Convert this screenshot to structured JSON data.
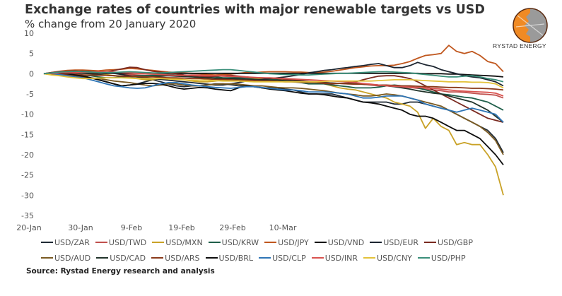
{
  "header": {
    "title": "Exchange rates of countries with major renewable targets vs USD",
    "subtitle": "% change from 20 January 2020"
  },
  "logo": {
    "text": "RYSTAD ENERGY",
    "icon": "globe-logo-icon",
    "colors": [
      "#f08a24",
      "#8c8c8c",
      "#5a2a10"
    ]
  },
  "source": "Source: Rystad Energy research and analysis",
  "chart_data": {
    "type": "line",
    "title": "Exchange rates of countries with major renewable targets vs USD",
    "subtitle": "% change from 20 January 2020",
    "xlabel": "",
    "ylabel": "",
    "ylim": [
      -35,
      10
    ],
    "yticks": [
      10,
      5,
      0,
      -5,
      -10,
      -15,
      -20,
      -25,
      -30,
      -35
    ],
    "xtick_labels": [
      "20-Jan",
      "30-Jan",
      "9-Feb",
      "19-Feb",
      "29-Feb",
      "10-Mar"
    ],
    "x_note": "daily observations from 20-Jan-2020 to ~19-Mar-2020 (60 points, index = day offset from 20-Jan)",
    "grid": false,
    "legend_position": "bottom",
    "series": [
      {
        "name": "USD/ZAR",
        "color": "#1f2a35",
        "values": [
          0,
          0.2,
          0.3,
          0.1,
          0,
          -0.5,
          -1,
          -1.5,
          -2,
          -2.5,
          -3,
          -2.8,
          -2.5,
          -2,
          -1.5,
          -2,
          -2.5,
          -3,
          -3.2,
          -3,
          -3,
          -2.8,
          -2.5,
          -2.5,
          -2.7,
          -3,
          -3,
          -3.2,
          -3.5,
          -3.5,
          -3.5,
          -3.8,
          -4,
          -4.5,
          -5,
          -5,
          -5,
          -5,
          -5.5,
          -6,
          -6.5,
          -7,
          -7,
          -7,
          -7,
          -7.5,
          -7.5,
          -7,
          -7,
          -7.5,
          -8,
          -8.5,
          -9,
          -10,
          -11,
          -12,
          -13,
          -14,
          -16,
          -19.5
        ]
      },
      {
        "name": "USD/TWD",
        "color": "#c0504d",
        "values": [
          0,
          0.2,
          0.3,
          0.4,
          0.4,
          0.3,
          0.2,
          0.2,
          0.2,
          0.1,
          0,
          -0.2,
          -0.3,
          -0.4,
          -0.4,
          -0.4,
          -0.4,
          -0.4,
          -0.4,
          -0.3,
          -0.3,
          -0.4,
          -0.5,
          -0.6,
          -0.7,
          -0.8,
          -0.9,
          -1,
          -1.1,
          -1.3,
          -1.4,
          -1.5,
          -1.5,
          -1.7,
          -1.9,
          -2,
          -2.2,
          -2.3,
          -2.4,
          -2.5,
          -2.5,
          -2.6,
          -2.8,
          -3,
          -3,
          -3.1,
          -3.2,
          -3.4,
          -3.6,
          -3.8,
          -4,
          -4.2,
          -4.5,
          -4.5,
          -4.6,
          -4.8,
          -5,
          -5.1,
          -5.3,
          -6
        ]
      },
      {
        "name": "USD/MXN",
        "color": "#c9a227",
        "values": [
          0,
          -0.2,
          -0.4,
          -0.5,
          -0.5,
          -0.5,
          -0.4,
          -0.3,
          -0.2,
          -0.5,
          -0.8,
          -1,
          -1.2,
          -1.5,
          -1.5,
          -1.2,
          -1,
          -1.2,
          -1.5,
          -1.8,
          -2,
          -2,
          -1.8,
          -1.6,
          -1.5,
          -1.5,
          -1.3,
          -1.2,
          -1.2,
          -1.3,
          -1.5,
          -1.7,
          -1.8,
          -2,
          -2,
          -2.2,
          -2.5,
          -3,
          -3.5,
          -3.8,
          -4,
          -4.5,
          -5,
          -5.5,
          -6,
          -7,
          -7.5,
          -8,
          -9.5,
          -13.5,
          -11,
          -13,
          -14,
          -17.5,
          -17,
          -17.5,
          -17.5,
          -20,
          -23,
          -30
        ]
      },
      {
        "name": "USD/KRW",
        "color": "#1f5f4a",
        "values": [
          0,
          0.1,
          0.2,
          0.1,
          0,
          -0.3,
          -0.5,
          -0.8,
          -1,
          -1,
          -0.8,
          -0.6,
          -0.5,
          -0.5,
          -0.4,
          -0.3,
          -0.2,
          -0.3,
          -0.4,
          -0.5,
          -0.6,
          -0.7,
          -0.8,
          -1,
          -1,
          -1,
          -1.2,
          -1.4,
          -1.5,
          -1.5,
          -1.5,
          -1.8,
          -2,
          -2.2,
          -2.5,
          -2.5,
          -2.5,
          -2.8,
          -3,
          -3.2,
          -3.5,
          -3.5,
          -3.5,
          -3.3,
          -3,
          -2.8,
          -3,
          -3.2,
          -3.5,
          -4,
          -4.5,
          -5,
          -5.2,
          -5.5,
          -5.8,
          -6,
          -6.5,
          -7,
          -8,
          -9
        ]
      },
      {
        "name": "USD/JPY",
        "color": "#c0571e",
        "values": [
          0,
          0.3,
          0.6,
          0.8,
          0.9,
          0.9,
          0.8,
          0.7,
          0.9,
          1,
          1.1,
          1.3,
          1.2,
          1.0,
          0.8,
          0.6,
          0.4,
          0.3,
          0.2,
          0.1,
          0,
          -0.2,
          -0.3,
          -0.2,
          -0.1,
          0.1,
          0.3,
          0.3,
          0.4,
          0.5,
          0.5,
          0.5,
          0.4,
          0.4,
          0.3,
          0.3,
          0.4,
          0.6,
          0.9,
          1.2,
          1.5,
          1.7,
          1.9,
          2,
          2,
          2.1,
          2.5,
          3,
          3.8,
          4.5,
          4.7,
          5,
          7,
          5.5,
          5,
          5.5,
          4.5,
          3,
          2.5,
          0.5
        ]
      },
      {
        "name": "USD/VND",
        "color": "#111111",
        "values": [
          0,
          0,
          0.1,
          0.1,
          0.1,
          0.1,
          0.1,
          0.1,
          0.1,
          0.1,
          0.1,
          0.1,
          0.1,
          0.1,
          0.1,
          0.1,
          0.1,
          0.1,
          0.1,
          0.1,
          0.1,
          0.1,
          0.1,
          0.1,
          0.1,
          0.1,
          0.1,
          0.1,
          0.1,
          0.1,
          0.1,
          0.1,
          0.1,
          0.1,
          0.1,
          0.1,
          0.1,
          0.1,
          0.1,
          0.1,
          0.1,
          0.1,
          0.1,
          0.1,
          0.1,
          0.1,
          0.1,
          0.1,
          0.1,
          0,
          0,
          0,
          -0.1,
          -0.1,
          -0.2,
          -0.3,
          -0.4,
          -0.5,
          -0.6,
          -0.8
        ]
      },
      {
        "name": "USD/EUR",
        "color": "#1c2530",
        "values": [
          0,
          0.2,
          0.4,
          0.5,
          0.6,
          0.6,
          0.5,
          0.4,
          0.3,
          0.1,
          -0.2,
          -0.5,
          -0.8,
          -1,
          -1.2,
          -1.4,
          -1.6,
          -1.8,
          -2,
          -2.2,
          -2.4,
          -2.6,
          -2.8,
          -2.8,
          -2.5,
          -2.2,
          -1.8,
          -1.6,
          -1.4,
          -1.2,
          -1,
          -0.8,
          -0.5,
          -0.2,
          0.2,
          0.5,
          0.8,
          1,
          1.3,
          1.5,
          1.8,
          2,
          2.3,
          2.5,
          2,
          1.5,
          1.5,
          2,
          2.8,
          2.2,
          1.8,
          1,
          0.5,
          0,
          -0.5,
          -0.8,
          -1,
          -1.5,
          -2,
          -3
        ]
      },
      {
        "name": "USD/GBP",
        "color": "#7a2a20",
        "values": [
          0,
          0.3,
          0.5,
          0.6,
          0.7,
          0.5,
          0.3,
          0.2,
          0.4,
          0.8,
          1.2,
          1.6,
          1.5,
          1,
          0.6,
          0.4,
          0.2,
          0,
          -0.3,
          -0.5,
          -0.6,
          -0.8,
          -0.6,
          -0.5,
          -0.4,
          -0.6,
          -0.8,
          -1,
          -1,
          -1.1,
          -1.2,
          -1.3,
          -1.5,
          -1.7,
          -2,
          -2.2,
          -2.4,
          -2.5,
          -2.4,
          -2.3,
          -2,
          -1.5,
          -1,
          -0.6,
          -0.5,
          -0.5,
          -0.8,
          -1.2,
          -2,
          -3,
          -4,
          -5,
          -6,
          -7,
          -8,
          -9,
          -10,
          -11,
          -11.5,
          -12
        ]
      },
      {
        "name": "USD/AUD",
        "color": "#7a5a22",
        "values": [
          0,
          -0.2,
          -0.3,
          -0.4,
          -0.5,
          -0.8,
          -1,
          -1.2,
          -1.5,
          -1.8,
          -2,
          -2.2,
          -2.5,
          -2.8,
          -3,
          -2.8,
          -2.5,
          -2.5,
          -2.8,
          -3,
          -3,
          -2.8,
          -2.6,
          -2.5,
          -2.5,
          -2.6,
          -2.8,
          -3,
          -3,
          -3.2,
          -3.4,
          -3.5,
          -3.5,
          -3.6,
          -3.8,
          -4,
          -4.2,
          -4.5,
          -4.8,
          -5,
          -5.2,
          -5.5,
          -5.5,
          -5.3,
          -5,
          -5.2,
          -5.5,
          -6,
          -6.5,
          -7,
          -7.5,
          -8,
          -9,
          -10,
          -11,
          -12,
          -13,
          -14.5,
          -16.5,
          -20
        ]
      },
      {
        "name": "USD/CAD",
        "color": "#21332a",
        "values": [
          0,
          0.1,
          0.1,
          0.2,
          0.2,
          0.1,
          0,
          -0.2,
          -0.4,
          -0.5,
          -0.6,
          -0.7,
          -0.8,
          -0.8,
          -0.7,
          -0.6,
          -0.5,
          -0.6,
          -0.7,
          -0.8,
          -0.9,
          -1,
          -1.1,
          -1.2,
          -1.2,
          -1.3,
          -1.4,
          -1.5,
          -1.6,
          -1.6,
          -1.6,
          -1.7,
          -1.8,
          -1.9,
          -2,
          -2.1,
          -2.2,
          -2.3,
          -2.4,
          -2.4,
          -2.5,
          -2.6,
          -2.7,
          -2.8,
          -3,
          -3.2,
          -3.5,
          -3.8,
          -4.2,
          -4.5,
          -4.8,
          -5,
          -5.5,
          -6,
          -6.5,
          -7,
          -8,
          -9,
          -10.5,
          -12
        ]
      },
      {
        "name": "USD/ARS",
        "color": "#8a3a1a",
        "values": [
          0,
          -0.1,
          -0.1,
          -0.2,
          -0.2,
          -0.3,
          -0.3,
          -0.4,
          -0.4,
          -0.5,
          -0.6,
          -0.6,
          -0.7,
          -0.8,
          -0.8,
          -0.9,
          -1,
          -1,
          -1.1,
          -1.2,
          -1.2,
          -1.3,
          -1.4,
          -1.4,
          -1.5,
          -1.6,
          -1.6,
          -1.7,
          -1.8,
          -1.8,
          -1.9,
          -2,
          -2,
          -2.1,
          -2.2,
          -2.2,
          -2.3,
          -2.4,
          -2.4,
          -2.5,
          -2.6,
          -2.6,
          -2.7,
          -2.8,
          -2.8,
          -2.9,
          -3,
          -3,
          -3.1,
          -3.2,
          -3.2,
          -3.3,
          -3.4,
          -3.4,
          -3.5,
          -3.6,
          -3.6,
          -3.7,
          -3.8,
          -4
        ]
      },
      {
        "name": "USD/BRL",
        "color": "#0d0d0d",
        "values": [
          0,
          0.1,
          0.1,
          0,
          -0.3,
          -0.6,
          -1,
          -1.5,
          -2,
          -2.5,
          -3,
          -2.8,
          -2.6,
          -2.4,
          -2.4,
          -2.6,
          -3,
          -3.5,
          -3.8,
          -3.6,
          -3.4,
          -3.5,
          -3.8,
          -4,
          -4.2,
          -3.5,
          -3.0,
          -3.2,
          -3.5,
          -3.8,
          -4,
          -4.2,
          -4.5,
          -4.8,
          -5,
          -5,
          -5.2,
          -5.5,
          -5.8,
          -6,
          -6.5,
          -7,
          -7.2,
          -7.5,
          -8,
          -8.5,
          -9,
          -10,
          -10.5,
          -10.5,
          -11,
          -12,
          -13,
          -14,
          -14,
          -15,
          -16,
          -18,
          -20,
          -22.5
        ]
      },
      {
        "name": "USD/CLP",
        "color": "#2e75b6",
        "values": [
          0,
          0.1,
          -0.2,
          -0.5,
          -0.8,
          -1,
          -1.5,
          -2,
          -2.5,
          -3,
          -3.2,
          -3.5,
          -3.6,
          -3.5,
          -3,
          -2.5,
          -2.2,
          -2.2,
          -2.5,
          -2.8,
          -3,
          -3.2,
          -3.4,
          -3.5,
          -3.6,
          -3.4,
          -3.2,
          -3.2,
          -3.4,
          -3.6,
          -3.8,
          -4,
          -4,
          -4.2,
          -4.5,
          -4.5,
          -4.5,
          -4.6,
          -4.8,
          -5,
          -5.5,
          -6,
          -6,
          -5.8,
          -5.5,
          -5.5,
          -5.5,
          -6,
          -6.5,
          -7.5,
          -8,
          -8.5,
          -9,
          -9.5,
          -9,
          -8.5,
          -9,
          -9.5,
          -10,
          -12
        ]
      },
      {
        "name": "USD/INR",
        "color": "#d9534f",
        "values": [
          0,
          0.1,
          0.2,
          0.2,
          0.2,
          0.3,
          0.4,
          0.5,
          0.5,
          0.4,
          0.3,
          0.2,
          0.1,
          0,
          -0.1,
          -0.2,
          -0.3,
          -0.4,
          -0.4,
          -0.4,
          -0.5,
          -0.5,
          -0.5,
          -0.5,
          -0.6,
          -0.7,
          -0.8,
          -0.9,
          -1,
          -1,
          -1.1,
          -1.2,
          -1.3,
          -1.4,
          -1.5,
          -1.6,
          -1.7,
          -1.8,
          -1.9,
          -2,
          -2.2,
          -2.4,
          -2.6,
          -2.8,
          -3,
          -3.1,
          -3.2,
          -3.3,
          -3.4,
          -3.5,
          -3.6,
          -3.8,
          -4,
          -4.2,
          -4.3,
          -4.4,
          -4.5,
          -4.6,
          -4.8,
          -5.5
        ]
      },
      {
        "name": "USD/CNY",
        "color": "#e3c23a",
        "values": [
          0,
          -0.3,
          -0.5,
          -0.8,
          -1,
          -1.2,
          -1.2,
          -1.1,
          -1,
          -1,
          -1,
          -1.1,
          -1.2,
          -1.2,
          -1.2,
          -1.2,
          -1.3,
          -1.4,
          -1.5,
          -1.6,
          -1.6,
          -1.6,
          -1.7,
          -1.8,
          -1.8,
          -1.8,
          -1.9,
          -2,
          -2,
          -2,
          -2,
          -2,
          -2,
          -2,
          -2,
          -2,
          -1.9,
          -1.8,
          -1.8,
          -1.8,
          -1.8,
          -1.8,
          -1.8,
          -1.7,
          -1.6,
          -1.5,
          -1.5,
          -1.5,
          -1.6,
          -1.7,
          -1.8,
          -1.9,
          -2,
          -2,
          -2,
          -2.1,
          -2.1,
          -2.2,
          -2.5,
          -3.5
        ]
      },
      {
        "name": "USD/PHP",
        "color": "#3a8f7a",
        "values": [
          0,
          0.2,
          0.4,
          0.5,
          0.6,
          0.5,
          0.4,
          0.3,
          0.3,
          0.3,
          0.4,
          0.5,
          0.4,
          0.3,
          0.2,
          0.2,
          0.3,
          0.4,
          0.5,
          0.6,
          0.7,
          0.8,
          0.9,
          1,
          1,
          0.8,
          0.6,
          0.4,
          0.2,
          0,
          -0.1,
          -0.2,
          -0.2,
          -0.3,
          -0.3,
          -0.2,
          -0.1,
          0,
          0.1,
          0.1,
          0.2,
          0.3,
          0.4,
          0.5,
          0.5,
          0.4,
          0.3,
          0.2,
          0,
          -0.2,
          -0.4,
          -0.6,
          -0.8,
          -0.8,
          -0.6,
          -0.5,
          -0.8,
          -1.2,
          -1.5,
          -2
        ]
      }
    ]
  }
}
